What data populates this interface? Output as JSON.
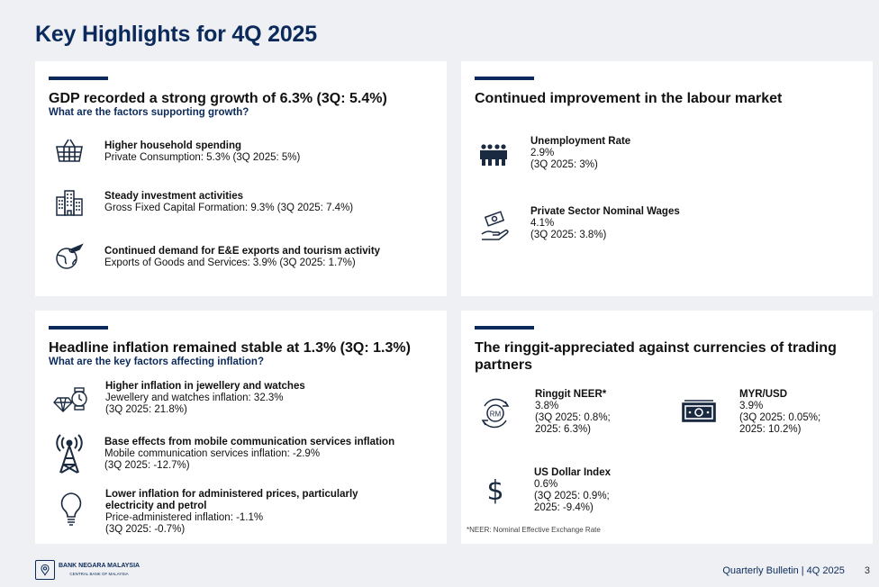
{
  "page_title": "Key Highlights for 4Q 2025",
  "gdp_card": {
    "title": "GDP recorded a strong growth of 6.3% (3Q: 5.4%)",
    "subtitle": "What are the factors supporting growth?",
    "items": [
      {
        "icon": "shopping-basket-icon",
        "heading": "Higher household spending",
        "line1": "Private Consumption: 5.3% (3Q 2025: 5%)"
      },
      {
        "icon": "buildings-icon",
        "heading": "Steady investment activities",
        "line1": "Gross Fixed Capital Formation: 9.3% (3Q 2025: 7.4%)"
      },
      {
        "icon": "globe-plane-icon",
        "heading": "Continued demand for E&E exports and tourism activity",
        "line1": "Exports of Goods and Services: 3.9% (3Q 2025: 1.7%)"
      }
    ]
  },
  "labour_card": {
    "title": "Continued improvement in the labour market",
    "items": [
      {
        "icon": "workers-group-icon",
        "heading": "Unemployment Rate",
        "line1": "2.9%",
        "line2": "(3Q 2025: 3%)"
      },
      {
        "icon": "wages-hand-icon",
        "heading": "Private Sector Nominal Wages",
        "line1": "4.1%",
        "line2": "(3Q 2025: 3.8%)"
      }
    ]
  },
  "inflation_card": {
    "title": "Headline inflation remained stable at 1.3% (3Q: 1.3%)",
    "subtitle": "What are the key factors affecting inflation?",
    "items": [
      {
        "icon": "diamond-watch-icon",
        "heading": "Higher inflation in jewellery and watches",
        "line1": "Jewellery and watches inflation: 32.3%",
        "line2": "(3Q 2025: 21.8%)"
      },
      {
        "icon": "cell-tower-icon",
        "heading": "Base effects from mobile communication services inflation",
        "line1": "Mobile communication services inflation: -2.9%",
        "line2": "(3Q 2025: -12.7%)"
      },
      {
        "icon": "lightbulb-icon",
        "heading": "Lower inflation for administered prices, particularly",
        "heading2": "electricity and petrol",
        "line1": "Price-administered inflation: -1.1%",
        "line2": "(3Q 2025: -0.7%)"
      }
    ]
  },
  "ringgit_card": {
    "title_line1": "The ringgit‑appreciated against currencies of trading",
    "title_line2": "partners",
    "items": [
      {
        "icon": "rm-exchange-icon",
        "heading": "Ringgit NEER*",
        "line1": "3.8%",
        "line2": "(3Q 2025: 0.8%;",
        "line3": "2025: 6.3%)"
      },
      {
        "icon": "banknote-icon",
        "heading": "MYR/USD",
        "line1": "3.9%",
        "line2": "(3Q 2025: 0.05%;",
        "line3": "2025: 10.2%)"
      },
      {
        "icon": "dollar-sign-icon",
        "heading": "US Dollar Index",
        "line1": "0.6%",
        "line2": "(3Q 2025: 0.9%;",
        "line3": "2025: -9.4%)"
      }
    ],
    "footnote": "*NEER: Nominal Effective Exchange Rate"
  },
  "footer": {
    "logo_name": "BANK NEGARA MALAYSIA",
    "logo_sub": "CENTRAL BANK OF MALAYSIA",
    "publication": "Quarterly Bulletin | 4Q 2025",
    "page_number": "3"
  },
  "colors": {
    "navy": "#0b2a5b",
    "background": "#eef0f3",
    "card": "#ffffff"
  }
}
